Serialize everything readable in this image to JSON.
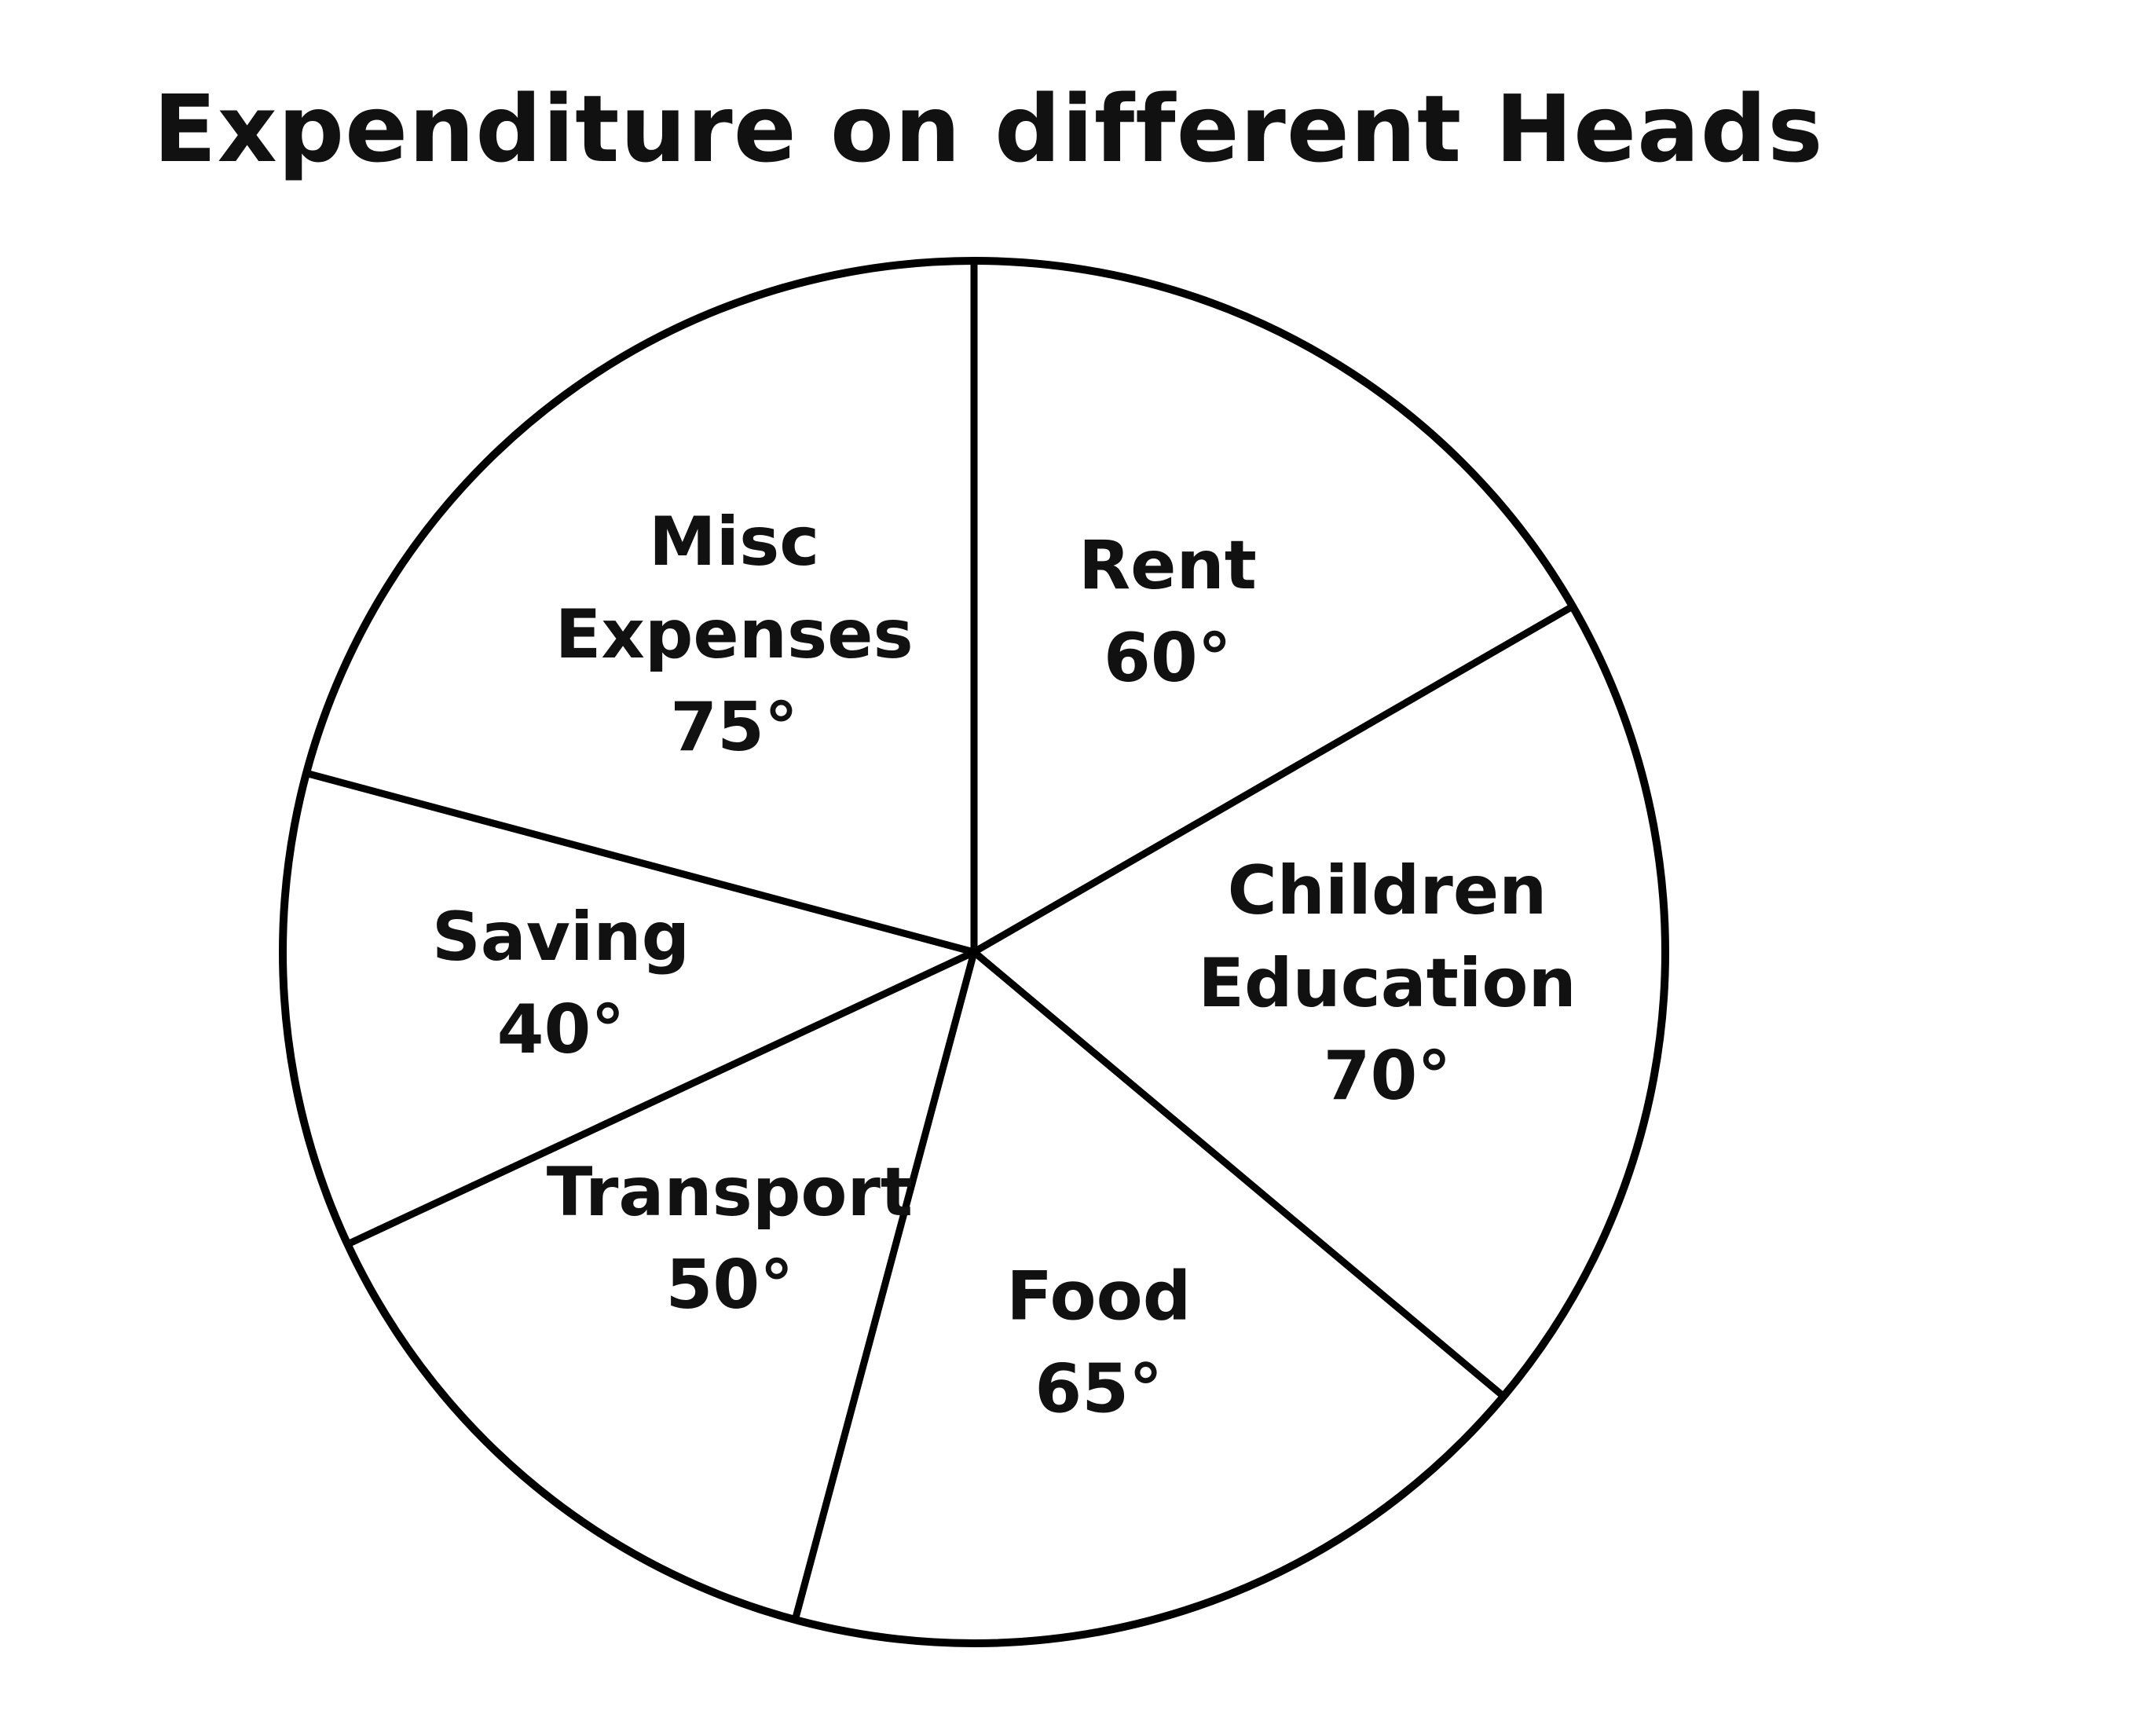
{
  "chart_data": {
    "type": "pie",
    "title": "Expenditure on different Heads",
    "unit": "°",
    "slices": [
      {
        "name": "Rent",
        "label_lines": [
          "Rent"
        ],
        "value": 60,
        "value_label": "60°"
      },
      {
        "name": "Children Education",
        "label_lines": [
          "Children",
          "Education"
        ],
        "value": 70,
        "value_label": "70°"
      },
      {
        "name": "Food",
        "label_lines": [
          "Food"
        ],
        "value": 65,
        "value_label": "65°"
      },
      {
        "name": "Transport",
        "label_lines": [
          "Transport"
        ],
        "value": 50,
        "value_label": "50°"
      },
      {
        "name": "Saving",
        "label_lines": [
          "Saving"
        ],
        "value": 40,
        "value_label": "40°"
      },
      {
        "name": "Misc Expenses",
        "label_lines": [
          "Misc",
          "Expenses"
        ],
        "value": 75,
        "value_label": "75°"
      }
    ],
    "start_position": "top",
    "direction": "clockwise",
    "legend": "none",
    "colors": {
      "fill": "#ffffff",
      "stroke": "#000000"
    }
  }
}
